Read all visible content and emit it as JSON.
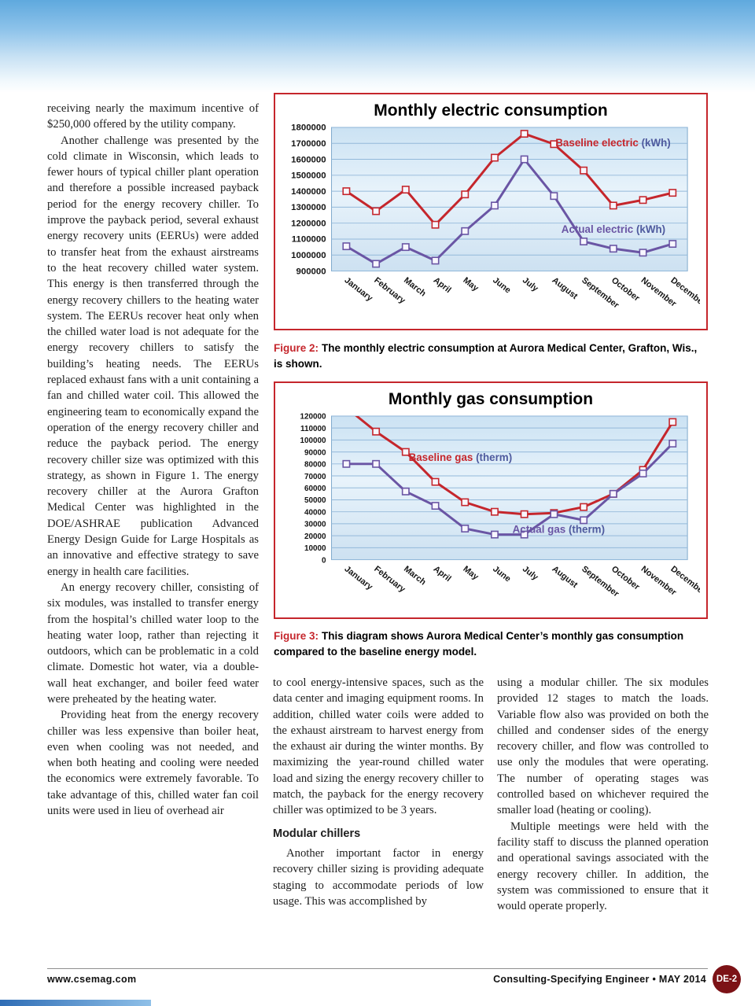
{
  "colors": {
    "accent_red": "#c5262c",
    "series_purple": "#6a55a4",
    "unit_text": "#4e5a9e"
  },
  "columns": {
    "left": [
      "receiving nearly the maximum incentive of $250,000 offered by the utility company.",
      "Another challenge was presented by the cold climate in Wisconsin, which leads to fewer hours of typical chiller plant operation and therefore a possible increased payback period for the energy recovery chiller. To improve the payback period, several exhaust energy recovery units (EERUs) were added to transfer heat from the exhaust airstreams to the heat recovery chilled water system. This energy is then transferred through the energy recovery chillers to the heating water system. The EERUs recover heat only when the chilled water load is not adequate for the energy recovery chillers to satisfy the building’s heating needs. The EERUs replaced exhaust fans with a unit containing a fan and chilled water coil. This allowed the engineering team to economically expand the operation of the energy recovery chiller and reduce the payback period. The energy recovery chiller size was optimized with this strategy, as shown in Figure 1. The energy recovery chiller at the Aurora Grafton Medical Center was highlighted in the DOE/ASHRAE publication Advanced Energy Design Guide for Large Hospitals as an innovative and effective strategy to save energy in health care facilities.",
      "An energy recovery chiller, consisting of six modules, was installed to transfer energy from the hospital’s chilled water loop to the heating water loop, rather than rejecting it outdoors, which can be problematic in a cold climate. Domestic hot water, via a double-wall heat exchanger, and boiler feed water were preheated by the heating water.",
      "Providing heat from the energy recovery chiller was less expensive than boiler heat, even when cooling was not needed, and when both heating and cooling were needed the economics were extremely favorable. To take advantage of this, chilled water fan coil units were used in lieu of overhead air"
    ],
    "middle": {
      "para1": "to cool energy-intensive spaces, such as the data center and imaging equipment rooms. In addition, chilled water coils were added to the exhaust airstream to harvest energy from the exhaust air during the winter months. By maximizing the year-round chilled water load and sizing the energy recovery chiller to match, the payback for the energy recovery chiller was optimized to be 3 years.",
      "heading": "Modular chillers",
      "para2": "Another important factor in energy recovery chiller sizing is providing adequate staging to accommodate periods of low usage. This was accomplished by"
    },
    "right": [
      "using a modular chiller. The six modules provided 12 stages to match the loads. Variable flow also was provided on both the chilled and condenser sides of the energy recovery chiller, and flow was controlled to use only the modules that were operating. The number of operating stages was controlled based on whichever required the smaller load (heating or cooling).",
      "Multiple meetings were held with the facility staff to discuss the planned operation and operational savings associated with the energy recovery chiller. In addition, the system was commissioned to ensure that it would operate properly."
    ]
  },
  "figures": {
    "fig2": {
      "label": "Figure 2:",
      "text": "The monthly electric consumption at Aurora Medical Center, Grafton, Wis., is shown."
    },
    "fig3": {
      "label": "Figure 3:",
      "text": "This diagram shows Aurora Medical Center’s monthly gas consumption compared to the baseline energy model."
    }
  },
  "chart_data": [
    {
      "type": "line",
      "title": "Monthly electric consumption",
      "categories": [
        "January",
        "February",
        "March",
        "April",
        "May",
        "June",
        "July",
        "August",
        "September",
        "October",
        "November",
        "December"
      ],
      "ylim": [
        900000,
        1800000
      ],
      "ytick": 100000,
      "grid": true,
      "legend_position": "in-plot labels",
      "series": [
        {
          "name": "Baseline electric",
          "unit": "(kWh)",
          "color": "#c5262c",
          "label_x": 7.55,
          "label_y": 1700000,
          "values": [
            1400000,
            1275000,
            1410000,
            1190000,
            1380000,
            1610000,
            1760000,
            1695000,
            1530000,
            1310000,
            1345000,
            1390000
          ]
        },
        {
          "name": "Actual electric",
          "unit": "(kWh)",
          "color": "#6a55a4",
          "label_x": 7.75,
          "label_y": 1160000,
          "values": [
            1055000,
            945000,
            1050000,
            965000,
            1150000,
            1310000,
            1600000,
            1370000,
            1085000,
            1040000,
            1015000,
            1070000
          ]
        }
      ]
    },
    {
      "type": "line",
      "title": "Monthly gas consumption",
      "categories": [
        "January",
        "February",
        "March",
        "April",
        "May",
        "June",
        "July",
        "August",
        "September",
        "October",
        "November",
        "December"
      ],
      "ylim": [
        0,
        120000
      ],
      "ytick": 10000,
      "grid": true,
      "legend_position": "in-plot labels",
      "series": [
        {
          "name": "Baseline gas",
          "unit": "(therm)",
          "color": "#c5262c",
          "label_x": 2.6,
          "label_y": 85000,
          "values": [
            127000,
            107000,
            90000,
            65000,
            48000,
            40000,
            38000,
            39000,
            44000,
            55000,
            75000,
            115000
          ]
        },
        {
          "name": "Actual gas",
          "unit": "(therm)",
          "color": "#6a55a4",
          "label_x": 6.1,
          "label_y": 25000,
          "values": [
            80000,
            80000,
            57000,
            45000,
            26000,
            21000,
            21000,
            38000,
            33000,
            55000,
            72000,
            97000
          ]
        }
      ]
    }
  ],
  "footer": {
    "site": "www.csemag.com",
    "publication": "Consulting-Specifying Engineer • MAY 2014",
    "badge": "DE-2"
  }
}
